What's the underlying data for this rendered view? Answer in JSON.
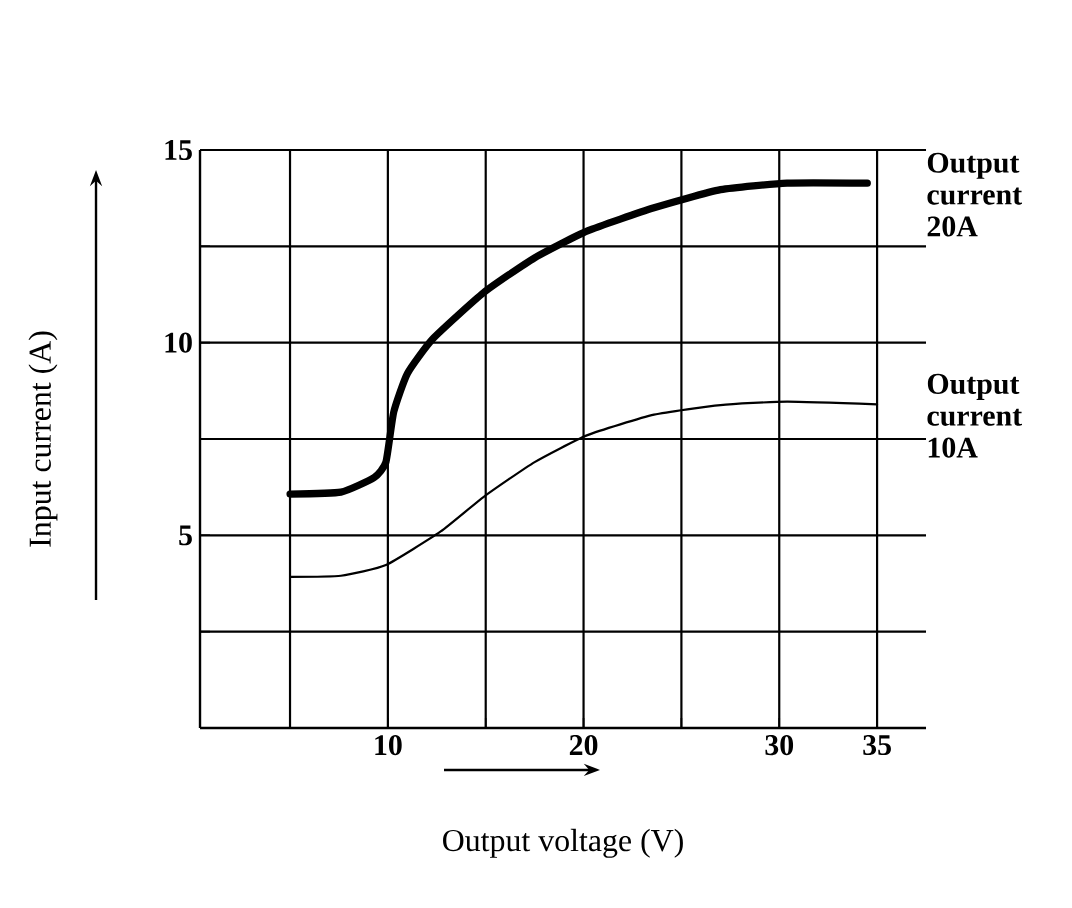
{
  "chart_data": {
    "type": "line",
    "xlabel": "Output voltage (V)",
    "ylabel": "Input current (A)",
    "series": [
      {
        "name": "Output current 20A",
        "color": "#000000",
        "x": [
          5,
          7.6,
          9.3,
          9.9,
          10.3,
          11.0,
          12.3,
          14.9,
          17.5,
          20.2,
          23.6,
          27,
          30.4,
          34.5
        ],
        "values": [
          6.07,
          6.12,
          6.5,
          6.9,
          8.2,
          9.2,
          10.1,
          11.3,
          12.2,
          12.9,
          13.5,
          13.97,
          14.14,
          14.14
        ]
      },
      {
        "name": "Output current 10A",
        "color": "#000000",
        "x": [
          5,
          7.6,
          9.9,
          12.7,
          14.9,
          17.5,
          20.2,
          23.6,
          27,
          30.4,
          35
        ],
        "values": [
          3.92,
          3.95,
          4.23,
          5.1,
          6.0,
          6.9,
          7.6,
          8.13,
          8.38,
          8.47,
          8.4
        ]
      }
    ],
    "xlim": [
      0.4,
      37.5
    ],
    "ylim": [
      0,
      15
    ],
    "xticks": [
      {
        "value": 5,
        "label": null
      },
      10,
      {
        "value": 15,
        "label": null
      },
      20,
      {
        "value": 25,
        "label": null
      },
      30,
      35
    ],
    "yticks": [
      {
        "value": 2.5,
        "label": null
      },
      5,
      {
        "value": 7.5,
        "label": null
      },
      10,
      {
        "value": 12.5,
        "label": null
      },
      15
    ],
    "grid": true,
    "marker": "none",
    "line_style": "solid"
  }
}
